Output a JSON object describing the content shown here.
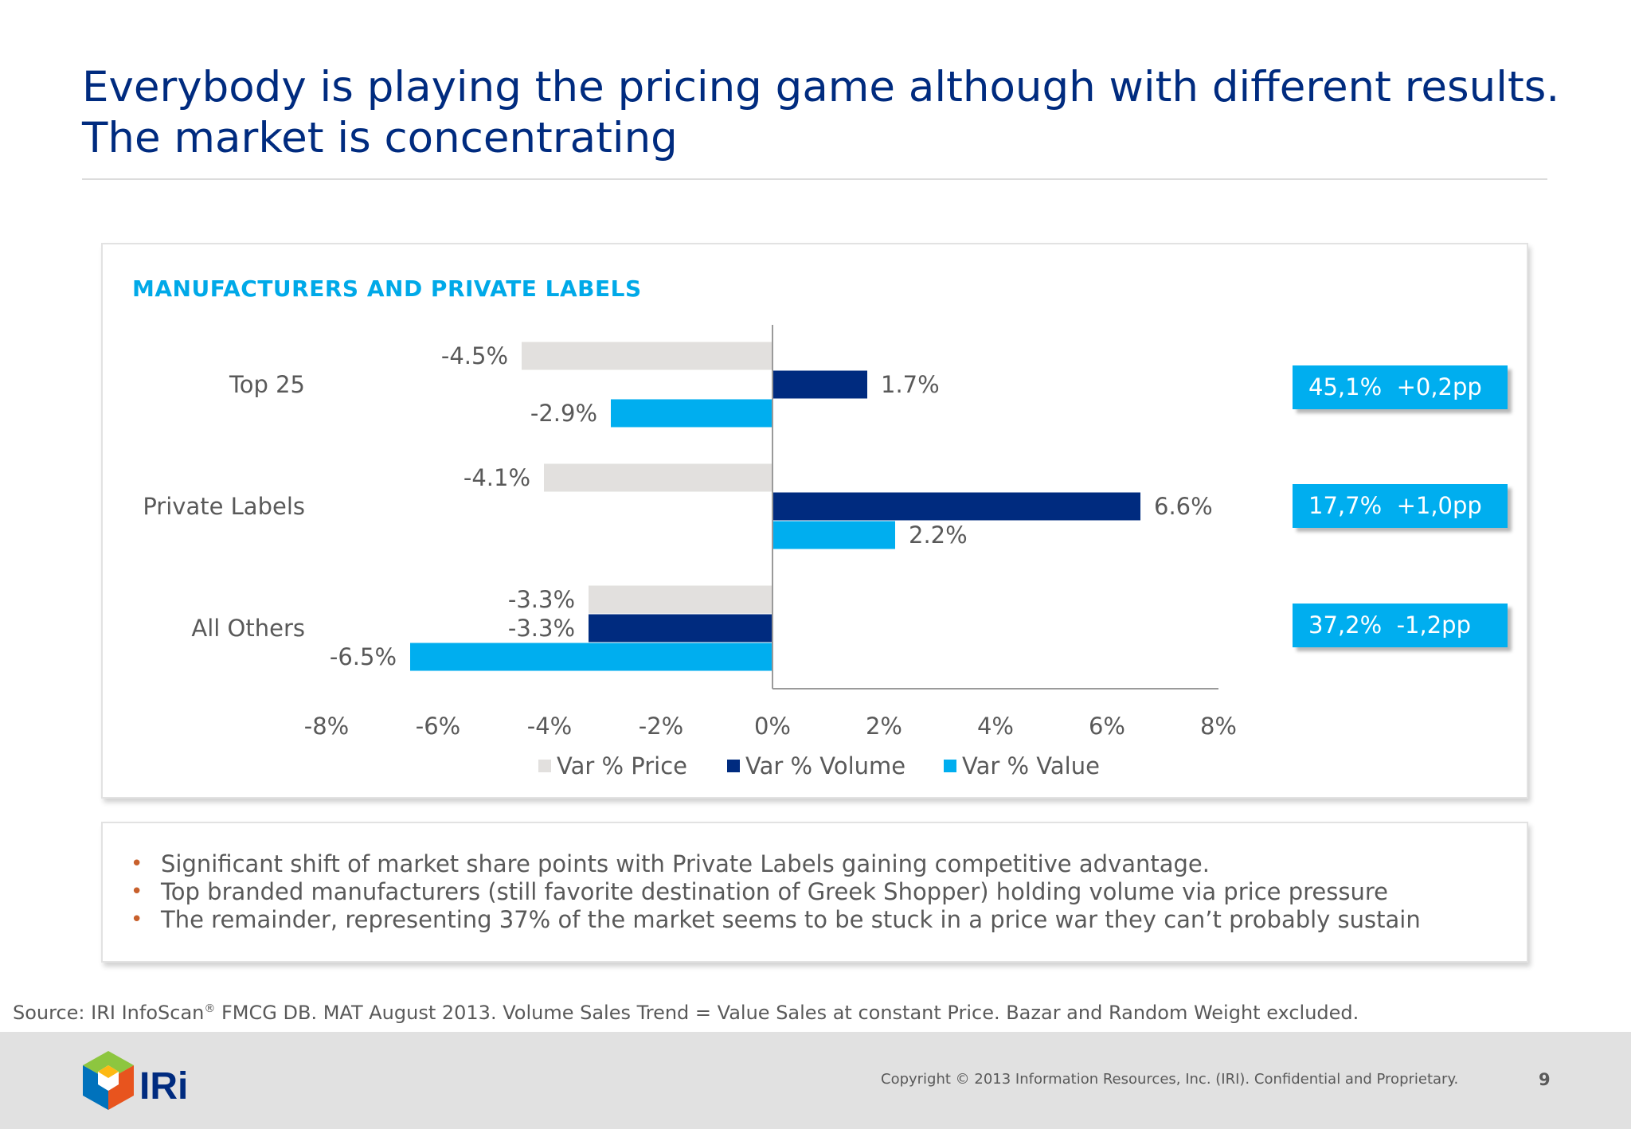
{
  "title_line1": "Everybody is playing the pricing game although with different results.",
  "title_line2": "The market is concentrating",
  "chart_heading": "MANUFACTURERS AND PRIVATE LABELS",
  "chart_data": {
    "type": "bar",
    "orientation": "horizontal",
    "title": "MANUFACTURERS AND PRIVATE LABELS",
    "categories": [
      "Top 25",
      "Private Labels",
      "All Others"
    ],
    "series": [
      {
        "name": "Var % Price",
        "color": "#E2E0DE",
        "values": [
          -4.5,
          -4.1,
          -3.3
        ],
        "labels": [
          "-4.5%",
          "-4.1%",
          "-3.3%"
        ]
      },
      {
        "name": "Var % Volume",
        "color": "#002B7F",
        "values": [
          1.7,
          6.6,
          -3.3
        ],
        "labels": [
          "1.7%",
          "6.6%",
          "-3.3%"
        ]
      },
      {
        "name": "Var % Value",
        "color": "#00AEEF",
        "values": [
          -2.9,
          2.2,
          -6.5
        ],
        "labels": [
          "-2.9%",
          "2.2%",
          "-6.5%"
        ]
      }
    ],
    "xlim": [
      -8,
      8
    ],
    "xticks": [
      -8,
      -6,
      -4,
      -2,
      0,
      2,
      4,
      6,
      8
    ],
    "xtick_labels": [
      "-8%",
      "-6%",
      "-4%",
      "-2%",
      "0%",
      "2%",
      "4%",
      "6%",
      "8%"
    ],
    "legend_position": "bottom",
    "grid": false
  },
  "share_boxes": [
    {
      "share": "45,1%",
      "change": "+0,2pp"
    },
    {
      "share": "17,7%",
      "change": "+1,0pp"
    },
    {
      "share": "37,2%",
      "change": "-1,2pp"
    }
  ],
  "notes": [
    "Significant shift of market share points with Private Labels gaining competitive advantage.",
    "Top branded manufacturers (still favorite destination of Greek Shopper) holding volume via price pressure",
    "The remainder, representing 37% of the market seems to be stuck in a price war they can’t probably sustain"
  ],
  "bullet_char": "•",
  "source": {
    "prefix": "Source: IRI InfoScan",
    "reg": "®",
    "suffix": " FMCG DB. MAT August 2013. Volume Sales Trend = Value Sales at constant Price. Bazar and Random Weight excluded."
  },
  "footer": {
    "logo_text": "IRi",
    "copyright": "Copyright © 2013 Information Resources, Inc. (IRI). Confidential and Proprietary.",
    "page_number": "9"
  }
}
